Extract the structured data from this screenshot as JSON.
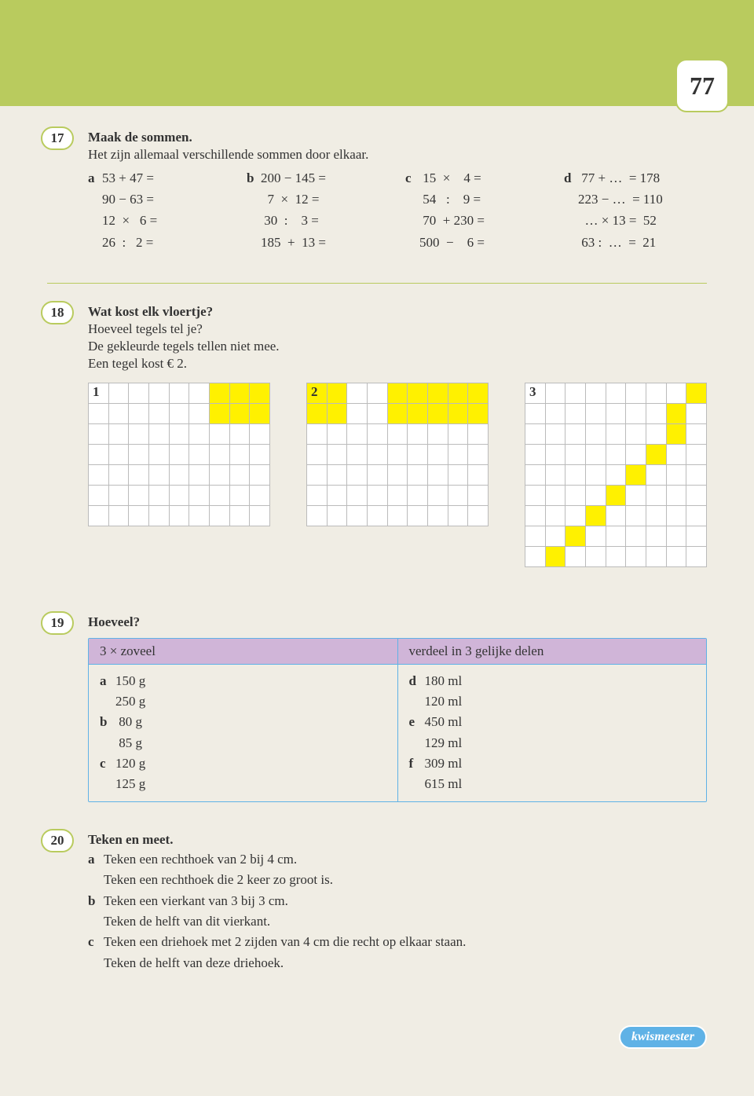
{
  "page_number": "77",
  "ex17": {
    "num": "17",
    "title": "Maak de sommen.",
    "subtitle": "Het zijn allemaal verschillende sommen door elkaar.",
    "cols": {
      "a": [
        "53 + 47 =",
        "90 − 63 =",
        "12  ×   6 =",
        "26  :   2 ="
      ],
      "b": [
        "200 − 145 =",
        "  7  ×  12 =",
        " 30  :    3 =",
        "185  +  13 ="
      ],
      "c": [
        " 15  ×    4 =",
        " 54   :    9 =",
        " 70  + 230 =",
        "500  −    6 ="
      ],
      "d": [
        " 77 + …  = 178",
        "223 − …  = 110",
        "  … × 13 =  52",
        " 63 :  …  =  21"
      ]
    }
  },
  "ex18": {
    "num": "18",
    "title": "Wat kost elk vloertje?",
    "sub1": "Hoeveel tegels tel je?",
    "sub2": "De gekleurde tegels tellen niet mee.",
    "sub3": "Een tegel kost € 2.",
    "grids": [
      {
        "label": "1",
        "rows": 7,
        "cols": 9,
        "cell_size": 26,
        "yellow": [
          [
            0,
            6
          ],
          [
            0,
            7
          ],
          [
            0,
            8
          ],
          [
            1,
            6
          ],
          [
            1,
            7
          ],
          [
            1,
            8
          ]
        ]
      },
      {
        "label": "2",
        "rows": 7,
        "cols": 9,
        "cell_size": 26,
        "yellow": [
          [
            0,
            0
          ],
          [
            0,
            1
          ],
          [
            0,
            4
          ],
          [
            0,
            5
          ],
          [
            0,
            6
          ],
          [
            0,
            7
          ],
          [
            0,
            8
          ],
          [
            1,
            0
          ],
          [
            1,
            1
          ],
          [
            1,
            4
          ],
          [
            1,
            5
          ],
          [
            1,
            6
          ],
          [
            1,
            7
          ],
          [
            1,
            8
          ]
        ]
      },
      {
        "label": "3",
        "rows": 9,
        "cols": 9,
        "cell_size": 26,
        "yellow": [
          [
            0,
            8
          ],
          [
            1,
            7
          ],
          [
            2,
            7
          ],
          [
            3,
            6
          ],
          [
            4,
            5
          ],
          [
            5,
            4
          ],
          [
            6,
            3
          ],
          [
            7,
            2
          ],
          [
            8,
            1
          ]
        ]
      }
    ],
    "grid_border_color": "#bbb",
    "yellow_color": "#fff100"
  },
  "ex19": {
    "num": "19",
    "title": "Hoeveel?",
    "head_left": "3 × zoveel",
    "head_right": "verdeel in 3 gelijke delen",
    "left": [
      {
        "lab": "a",
        "val": "150 g"
      },
      {
        "lab": "",
        "val": "250 g"
      },
      {
        "lab": "b",
        "val": " 80 g"
      },
      {
        "lab": "",
        "val": " 85 g"
      },
      {
        "lab": "c",
        "val": "120 g"
      },
      {
        "lab": "",
        "val": "125 g"
      }
    ],
    "right": [
      {
        "lab": "d",
        "val": "180 ml"
      },
      {
        "lab": "",
        "val": "120 ml"
      },
      {
        "lab": "e",
        "val": "450 ml"
      },
      {
        "lab": "",
        "val": "129 ml"
      },
      {
        "lab": "f",
        "val": "309 ml"
      },
      {
        "lab": "",
        "val": "615 ml"
      }
    ],
    "header_bg": "#d0b5d8",
    "border_color": "#5fb2e6"
  },
  "ex20": {
    "num": "20",
    "title": "Teken en meet.",
    "lines": [
      {
        "lab": "a",
        "text": "Teken een rechthoek van 2 bij 4 cm."
      },
      {
        "lab": "",
        "text": "Teken een rechthoek die 2 keer zo groot is."
      },
      {
        "lab": "b",
        "text": "Teken een vierkant van 3 bij 3 cm."
      },
      {
        "lab": "",
        "text": "Teken de helft van dit vierkant."
      },
      {
        "lab": "c",
        "text": "Teken een driehoek met 2 zijden van 4 cm die recht op elkaar staan."
      },
      {
        "lab": "",
        "text": "Teken de helft van deze driehoek."
      }
    ]
  },
  "footer_label": "kwismeester",
  "colors": {
    "band": "#b9cb5e",
    "bg": "#f0ede4",
    "badge_blue": "#5fb2e6"
  }
}
